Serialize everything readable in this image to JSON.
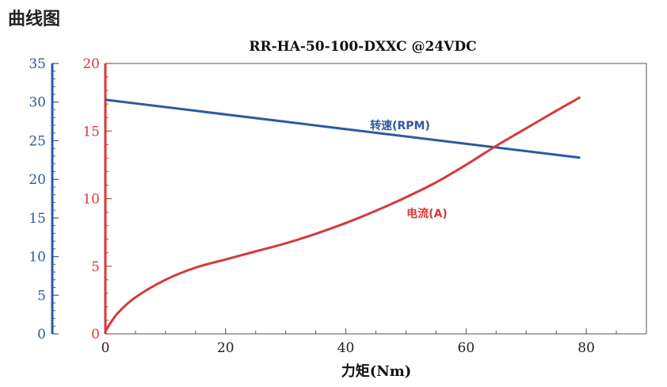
{
  "section_title": "曲线图",
  "chart_data": {
    "type": "line",
    "title": "RR-HA-50-100-DXXC @24VDC",
    "xlabel": "力矩(Nm)",
    "xlim": [
      0,
      90
    ],
    "x_ticks": [
      "0",
      "20",
      "40",
      "60",
      "80"
    ],
    "y_left_speed": {
      "ylim": [
        0,
        35
      ],
      "ticks": [
        "0",
        "5",
        "10",
        "15",
        "20",
        "25",
        "30",
        "35"
      ],
      "color": "#2c5aa0"
    },
    "y_left_current": {
      "ylim": [
        0,
        20
      ],
      "ticks": [
        "0",
        "5",
        "10",
        "15",
        "20"
      ],
      "color": "#d63a3a"
    },
    "series": [
      {
        "name": "转速(RPM)",
        "axis": "speed",
        "color": "#2c5aa0",
        "x": [
          0,
          79
        ],
        "values": [
          30.3,
          22.8
        ]
      },
      {
        "name": "电流(A)",
        "axis": "current",
        "color": "#d63a3a",
        "x": [
          0,
          2,
          5,
          10,
          15,
          20,
          25,
          30,
          35,
          40,
          45,
          50,
          55,
          60,
          65,
          70,
          75,
          79
        ],
        "values": [
          0.2,
          1.5,
          2.7,
          4.0,
          4.9,
          5.5,
          6.1,
          6.7,
          7.4,
          8.2,
          9.1,
          10.1,
          11.2,
          12.5,
          13.9,
          15.2,
          16.5,
          17.5
        ]
      }
    ]
  }
}
